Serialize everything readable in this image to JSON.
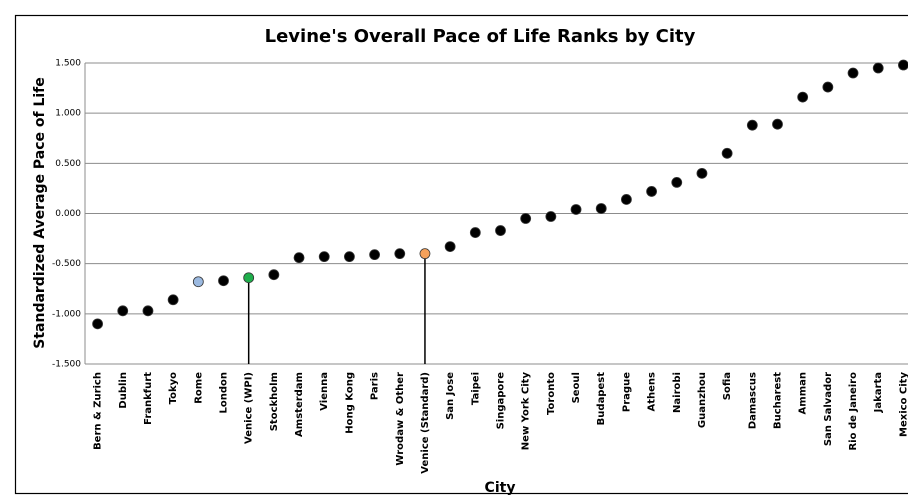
{
  "chart_data": {
    "type": "scatter",
    "title": "Levine's Overall Pace of Life Ranks by City",
    "x_label": "City",
    "y_label": "Standardized  Average Pace of Life",
    "categories": [
      "Bern & Zurich",
      "Dublin",
      "Frankfurt",
      "Tokyo",
      "Rome",
      "London",
      "Venice (WPI)",
      "Stockholm",
      "Amsterdam",
      "Vienna",
      "Hong Kong",
      "Paris",
      "Wrodaw & Other",
      "Venice (Standard)",
      "San Jose",
      "Taipei",
      "Singapore",
      "New York City",
      "Toronto",
      "Seoul",
      "Budapest",
      "Prague",
      "Athens",
      "Nairobi",
      "Guanzhou",
      "Sofia",
      "Damascus",
      "Bucharest",
      "Amman",
      "San Salvador",
      "Rio de Janeiro",
      "Jakarta",
      "Mexico City"
    ],
    "series": [
      {
        "name": "Pace of Life",
        "color": "#000000",
        "values": [
          -1.1,
          -0.97,
          -0.97,
          -0.86,
          -0.68,
          -0.67,
          -0.64,
          -0.61,
          -0.44,
          -0.43,
          -0.43,
          -0.41,
          -0.4,
          -0.4,
          -0.33,
          -0.19,
          -0.17,
          -0.05,
          -0.03,
          0.04,
          0.05,
          0.14,
          0.22,
          0.31,
          0.4,
          0.6,
          0.88,
          0.89,
          1.16,
          1.26,
          1.4,
          1.45,
          1.48
        ],
        "point_colors": {
          "4": "#9bb9e0",
          "6": "#1fae4b",
          "13": "#f5a15a"
        },
        "drop_lines": [
          6,
          13
        ]
      }
    ],
    "ylim": [
      -1.5,
      1.5
    ],
    "yticks": [
      {
        "value": -1.5,
        "label": "-1.500"
      },
      {
        "value": -1.0,
        "label": "-1.000"
      },
      {
        "value": -0.5,
        "label": "-0.500"
      },
      {
        "value": 0,
        "label": "0.000"
      },
      {
        "value": 0.5,
        "label": "0.500"
      },
      {
        "value": 1.0,
        "label": "1.000"
      },
      {
        "value": 1.5,
        "label": "1.500"
      }
    ],
    "grid": true
  }
}
